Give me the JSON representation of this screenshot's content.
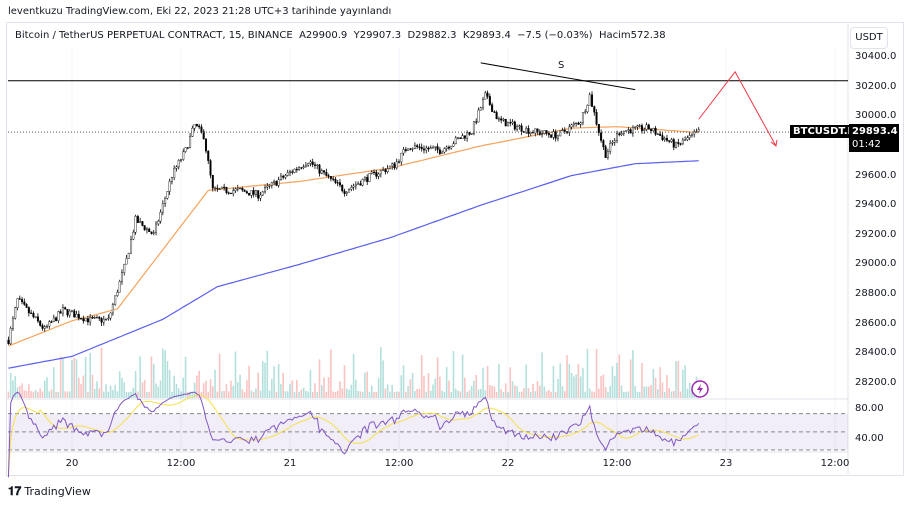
{
  "publish_line": "leventkuzu TradingView.com, Eki 22, 2023 21:28 UTC+3 tarihinde yayınlandı",
  "legend": {
    "symbol": "Bitcoin / TetherUS PERPETUAL CONTRACT, 15, BINANCE",
    "open": "A29900.9",
    "high": "Y29907.3",
    "low": "D29882.3",
    "close": "K29893.4",
    "change": "−7.5 (−0.03%)",
    "volume": "Hacim572.38"
  },
  "currency_button": "USDT",
  "price_ticks": [
    "30400.0",
    "30200.0",
    "30000.0",
    "29600.0",
    "29400.0",
    "29200.0",
    "29000.0",
    "28800.0",
    "28600.0",
    "28400.0",
    "28200.0"
  ],
  "rsi_ticks": [
    "80.00",
    "40.00"
  ],
  "time_ticks": [
    "20",
    "12:00",
    "21",
    "12:00",
    "22",
    "12:00",
    "23",
    "12:00"
  ],
  "symbol_tag": "BTCUSDT.P",
  "last_price": "29893.4",
  "countdown": "01:42",
  "annotation_label": "S",
  "brand": "TradingView",
  "icons": {
    "alert": "lightning-icon",
    "logo": "tradingview-logo-icon"
  },
  "colors": {
    "ma_fast": "#f7a35c",
    "ma_slow": "#5b5ff0",
    "rsi": "#7e57c2",
    "rsi_ma": "#f5e04a",
    "projection": "#f23645"
  },
  "chart_data": {
    "type": "candlestick",
    "interval_minutes": 15,
    "x_unit": "hours since Oct 20 00:00",
    "ylim": [
      28100,
      30500
    ],
    "resistance": 30240,
    "current_price": 29893.4,
    "close_waypoints": [
      [
        -7,
        28490
      ],
      [
        -6,
        28760
      ],
      [
        -3,
        28560
      ],
      [
        -1,
        28690
      ],
      [
        2,
        28625
      ],
      [
        4,
        28625
      ],
      [
        6,
        29030
      ],
      [
        7,
        29300
      ],
      [
        9,
        29200
      ],
      [
        11,
        29600
      ],
      [
        12.5,
        29770
      ],
      [
        13.5,
        29940
      ],
      [
        14.5,
        29870
      ],
      [
        15.5,
        29500
      ],
      [
        18.5,
        29500
      ],
      [
        20.5,
        29470
      ],
      [
        23.5,
        29600
      ],
      [
        26,
        29700
      ],
      [
        28.5,
        29570
      ],
      [
        30,
        29500
      ],
      [
        33,
        29600
      ],
      [
        35.5,
        29670
      ],
      [
        37,
        29800
      ],
      [
        40.5,
        29770
      ],
      [
        44,
        29900
      ],
      [
        45.5,
        30140
      ],
      [
        47,
        29970
      ],
      [
        50.5,
        29900
      ],
      [
        53.5,
        29870
      ],
      [
        56,
        29970
      ],
      [
        57,
        30140
      ],
      [
        58,
        29900
      ],
      [
        58.7,
        29740
      ],
      [
        60.3,
        29900
      ],
      [
        63.5,
        29920
      ],
      [
        66.5,
        29800
      ],
      [
        69,
        29893
      ]
    ],
    "ma_fast_waypoints": [
      [
        -7,
        28450
      ],
      [
        0,
        28620
      ],
      [
        5,
        28700
      ],
      [
        10,
        29100
      ],
      [
        15,
        29500
      ],
      [
        25,
        29560
      ],
      [
        35,
        29650
      ],
      [
        45,
        29800
      ],
      [
        55,
        29920
      ],
      [
        60,
        29930
      ],
      [
        69,
        29890
      ]
    ],
    "ma_slow_waypoints": [
      [
        -7,
        28300
      ],
      [
        0,
        28380
      ],
      [
        10,
        28630
      ],
      [
        16,
        28850
      ],
      [
        25,
        29000
      ],
      [
        35,
        29180
      ],
      [
        45,
        29400
      ],
      [
        55,
        29600
      ],
      [
        62,
        29680
      ],
      [
        69,
        29700
      ]
    ],
    "projection": [
      [
        69,
        29980
      ],
      [
        73,
        30300
      ],
      [
        77.5,
        29800
      ]
    ],
    "trendline": [
      [
        45,
        30360
      ],
      [
        62,
        30180
      ]
    ],
    "rsi_levels": [
      70,
      50,
      30
    ]
  }
}
